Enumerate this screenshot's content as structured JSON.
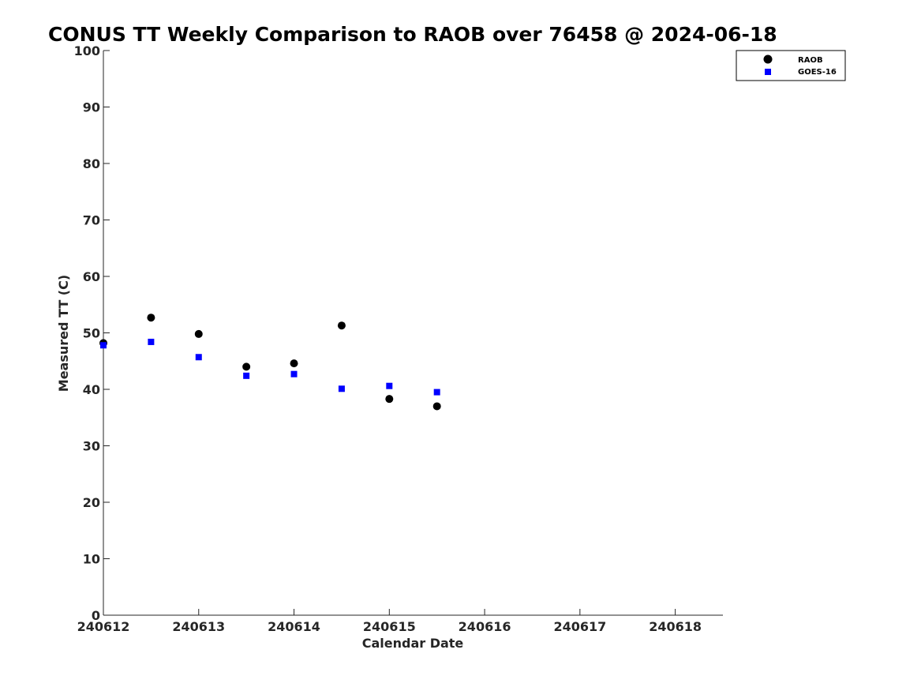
{
  "chart_data": {
    "type": "scatter",
    "title": "CONUS TT Weekly Comparison to RAOB over 76458 @ 2024-06-18",
    "xlabel": "Calendar Date",
    "ylabel": "Measured TT (C)",
    "xlim": [
      0,
      6.5
    ],
    "ylim": [
      0,
      100
    ],
    "x_ticks": [
      {
        "value": 0,
        "label": "240612"
      },
      {
        "value": 1,
        "label": "240613"
      },
      {
        "value": 2,
        "label": "240614"
      },
      {
        "value": 3,
        "label": "240615"
      },
      {
        "value": 4,
        "label": "240616"
      },
      {
        "value": 5,
        "label": "240617"
      },
      {
        "value": 6,
        "label": "240618"
      }
    ],
    "y_ticks": [
      0,
      10,
      20,
      30,
      40,
      50,
      60,
      70,
      80,
      90,
      100
    ],
    "grid": false,
    "legend_position": "top-right",
    "series": [
      {
        "name": "RAOB",
        "marker": "circle",
        "color": "#000000",
        "x": [
          0,
          0.5,
          1,
          1.5,
          2,
          2.5,
          3,
          3.5
        ],
        "y": [
          48.2,
          52.7,
          49.8,
          44.0,
          44.6,
          51.3,
          38.3,
          37.0
        ]
      },
      {
        "name": "GOES-16",
        "marker": "square",
        "color": "#0000ff",
        "x": [
          0,
          0.5,
          1,
          1.5,
          2,
          2.5,
          3,
          3.5
        ],
        "y": [
          47.8,
          48.4,
          45.7,
          42.4,
          42.7,
          40.1,
          40.6,
          39.5
        ]
      }
    ]
  }
}
